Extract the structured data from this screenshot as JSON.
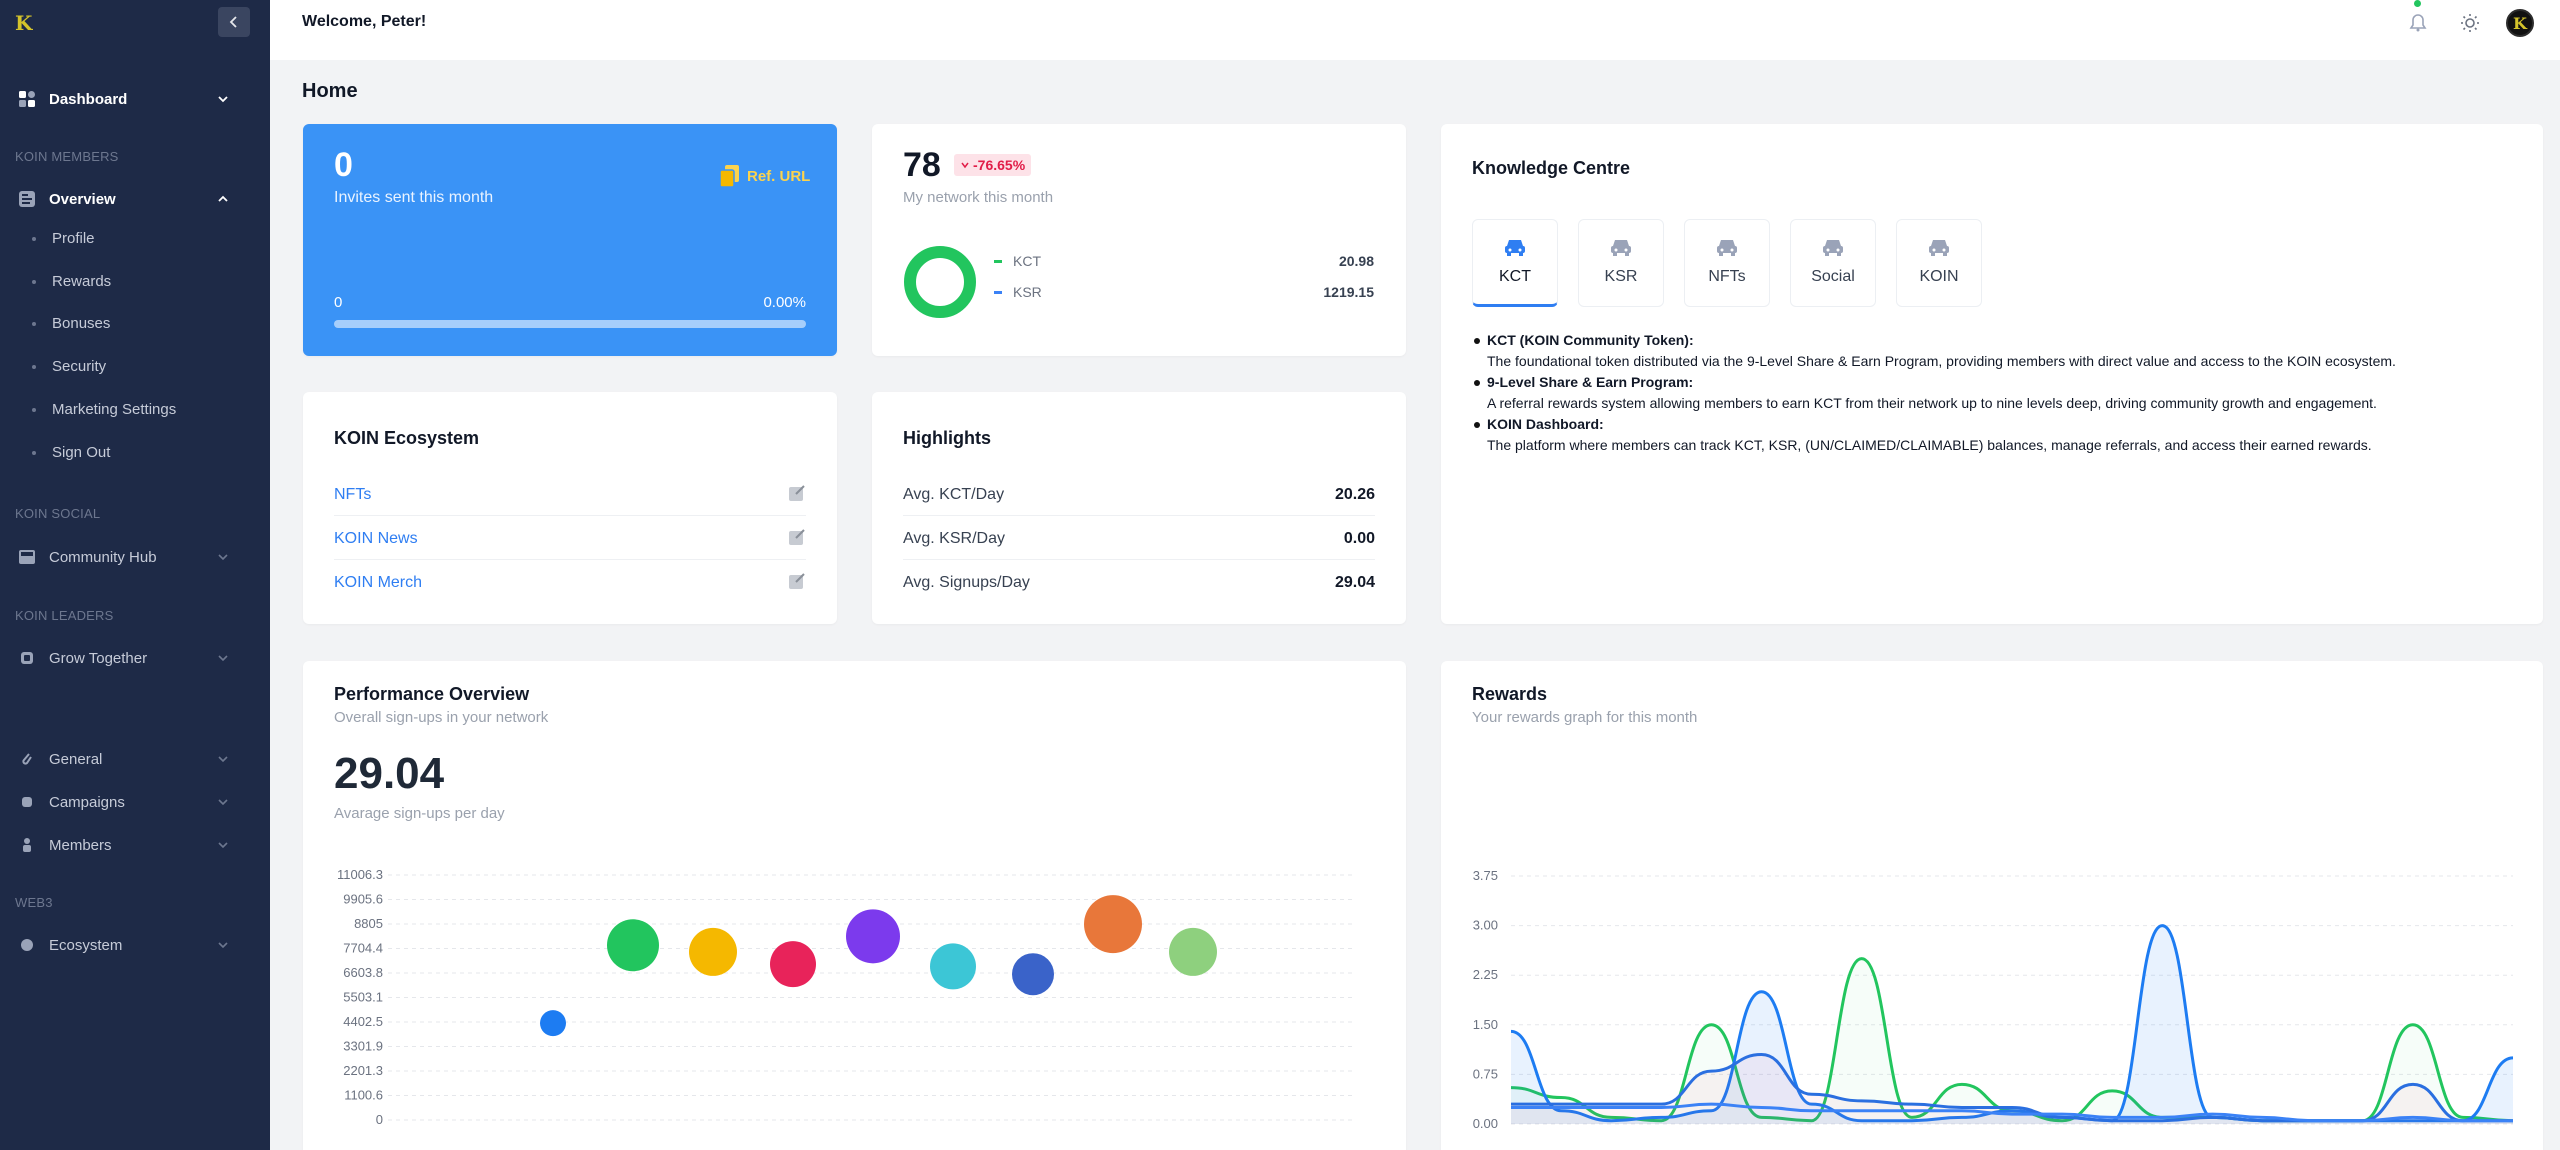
{
  "sidebar": {
    "dashboard": "Dashboard",
    "sections": {
      "members": "KOIN MEMBERS",
      "social": "KOIN SOCIAL",
      "leaders": "KOIN LEADERS",
      "web3": "WEB3"
    },
    "overview": "Overview",
    "overview_items": [
      "Profile",
      "Rewards",
      "Bonuses",
      "Security",
      "Marketing Settings",
      "Sign Out"
    ],
    "community_hub": "Community Hub",
    "grow_together": "Grow Together",
    "general": "General",
    "campaigns": "Campaigns",
    "members_item": "Members",
    "ecosystem": "Ecosystem"
  },
  "header": {
    "welcome": "Welcome, Peter!"
  },
  "page": {
    "title": "Home"
  },
  "invites": {
    "count": "0",
    "label": "Invites sent this month",
    "ref_url": "Ref. URL",
    "progress_low": "0",
    "progress_pct": "0.00%",
    "progress_fraction": 0
  },
  "network": {
    "count": "78",
    "change": "-76.65%",
    "label": "My network this month",
    "legend": [
      {
        "name": "KCT",
        "value": "20.98",
        "color": "#22c55e"
      },
      {
        "name": "KSR",
        "value": "1219.15",
        "color": "#3b82f6"
      }
    ]
  },
  "knowledge": {
    "title": "Knowledge Centre",
    "tabs": [
      "KCT",
      "KSR",
      "NFTs",
      "Social",
      "KOIN"
    ],
    "active_tab": "KCT",
    "items": [
      {
        "heading": "KCT (KOIN Community Token):",
        "text": "The foundational token distributed via the 9-Level Share & Earn Program, providing members with direct value and access to the KOIN ecosystem."
      },
      {
        "heading": "9-Level Share & Earn Program:",
        "text": "A referral rewards system allowing members to earn KCT from their network up to nine levels deep, driving community growth and engagement."
      },
      {
        "heading": "KOIN Dashboard:",
        "text": "The platform where members can track KCT, KSR, (UN/CLAIMED/CLAIMABLE) balances, manage referrals, and access their earned rewards."
      }
    ]
  },
  "ecosystem": {
    "title": "KOIN Ecosystem",
    "links": [
      "NFTs",
      "KOIN News",
      "KOIN Merch"
    ]
  },
  "highlights": {
    "title": "Highlights",
    "rows": [
      {
        "label": "Avg. KCT/Day",
        "value": "20.26"
      },
      {
        "label": "Avg. KSR/Day",
        "value": "0.00"
      },
      {
        "label": "Avg. Signups/Day",
        "value": "29.04"
      }
    ]
  },
  "performance": {
    "title": "Performance Overview",
    "subtitle": "Overall sign-ups in your network",
    "value": "29.04",
    "value_label": "Avarage sign-ups per day"
  },
  "rewards": {
    "title": "Rewards",
    "subtitle": "Your rewards graph for this month"
  },
  "chart_data": [
    {
      "type": "scatter",
      "title": "",
      "yticks": [
        "11006.3",
        "9905.6",
        "8805",
        "7704.4",
        "6603.8",
        "5503.1",
        "4402.5",
        "3301.9",
        "2201.3",
        "1100.6",
        "0"
      ],
      "ylim": [
        0,
        11006.3
      ],
      "grid": true,
      "points": [
        {
          "x": 1,
          "y": 4350,
          "r": 13,
          "color": "#1d7cf2"
        },
        {
          "x": 2,
          "y": 7850,
          "r": 26,
          "color": "#22c55e"
        },
        {
          "x": 3,
          "y": 7550,
          "r": 24,
          "color": "#f5b800"
        },
        {
          "x": 4,
          "y": 7000,
          "r": 23,
          "color": "#e8235a"
        },
        {
          "x": 5,
          "y": 8250,
          "r": 27,
          "color": "#7c3aed"
        },
        {
          "x": 6,
          "y": 6900,
          "r": 23,
          "color": "#3cc6d6"
        },
        {
          "x": 7,
          "y": 6550,
          "r": 21,
          "color": "#3a63c9"
        },
        {
          "x": 8,
          "y": 8800,
          "r": 29,
          "color": "#e8773a"
        },
        {
          "x": 9,
          "y": 7550,
          "r": 24,
          "color": "#8ed07e"
        }
      ]
    },
    {
      "type": "area",
      "title": "",
      "yticks": [
        "3.75",
        "3.00",
        "2.25",
        "1.50",
        "0.75",
        "0.00"
      ],
      "ylim": [
        0,
        3.75
      ],
      "grid": true,
      "x": [
        0,
        1,
        2,
        3,
        4,
        5,
        6,
        7,
        8,
        9,
        10,
        11,
        12,
        13,
        14,
        15,
        16,
        17,
        18,
        19,
        20
      ],
      "series": [
        {
          "color": "#22c55e",
          "fill": "rgba(34,197,94,0.04)",
          "values": [
            0.55,
            0.4,
            0.1,
            0.05,
            1.5,
            0.1,
            0.05,
            2.5,
            0.1,
            0.6,
            0.2,
            0.05,
            0.5,
            0.1,
            0.1,
            0.05,
            0.05,
            0.05,
            1.5,
            0.1,
            0.05
          ]
        },
        {
          "color": "#1d7cf2",
          "fill": "rgba(29,124,242,0.10)",
          "values": [
            1.4,
            0.2,
            0.05,
            0.1,
            0.2,
            2.0,
            0.3,
            0.05,
            0.05,
            0.1,
            0.2,
            0.1,
            0.05,
            3.0,
            0.1,
            0.05,
            0.05,
            0.05,
            0.05,
            0.05,
            1.0
          ]
        },
        {
          "color": "#2a6fe0",
          "fill": "rgba(232,35,90,0.05)",
          "values": [
            0.3,
            0.3,
            0.3,
            0.3,
            0.8,
            1.05,
            0.45,
            0.35,
            0.3,
            0.25,
            0.25,
            0.1,
            0.05,
            0.05,
            0.1,
            0.05,
            0.05,
            0.05,
            0.6,
            0.05,
            0.05
          ]
        },
        {
          "color": "#3b82f6",
          "fill": "rgba(59,130,246,0.0)",
          "values": [
            0.25,
            0.25,
            0.25,
            0.25,
            0.3,
            0.25,
            0.2,
            0.2,
            0.2,
            0.2,
            0.15,
            0.15,
            0.1,
            0.1,
            0.15,
            0.1,
            0.05,
            0.05,
            0.1,
            0.05,
            0.05
          ]
        }
      ]
    }
  ]
}
